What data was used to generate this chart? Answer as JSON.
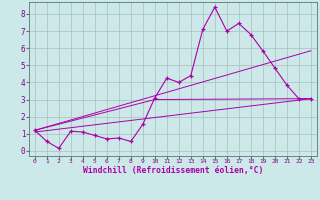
{
  "xlabel": "Windchill (Refroidissement éolien,°C)",
  "background_color": "#cde8e8",
  "grid_color": "#aabcbc",
  "line_color": "#aa00aa",
  "xlim": [
    -0.5,
    23.5
  ],
  "ylim": [
    -0.3,
    8.7
  ],
  "xticks": [
    0,
    1,
    2,
    3,
    4,
    5,
    6,
    7,
    8,
    9,
    10,
    11,
    12,
    13,
    14,
    15,
    16,
    17,
    18,
    19,
    20,
    21,
    22,
    23
  ],
  "yticks": [
    0,
    1,
    2,
    3,
    4,
    5,
    6,
    7,
    8
  ],
  "series1_x": [
    0,
    1,
    2,
    3,
    4,
    5,
    6,
    7,
    8,
    9,
    10,
    11,
    12,
    13,
    14,
    15,
    16,
    17,
    18,
    19,
    20,
    21,
    22,
    23
  ],
  "series1_y": [
    1.2,
    0.55,
    0.15,
    1.15,
    1.1,
    0.9,
    0.7,
    0.75,
    0.55,
    1.55,
    3.1,
    4.25,
    4.0,
    4.4,
    7.1,
    8.4,
    7.0,
    7.45,
    6.8,
    5.85,
    4.85,
    3.85,
    3.05,
    3.05
  ],
  "series2_x": [
    0,
    23
  ],
  "series2_y": [
    1.1,
    3.05
  ],
  "series3_x": [
    0,
    23
  ],
  "series3_y": [
    1.2,
    5.85
  ],
  "series4_x": [
    0,
    10,
    23
  ],
  "series4_y": [
    1.2,
    3.0,
    3.05
  ]
}
